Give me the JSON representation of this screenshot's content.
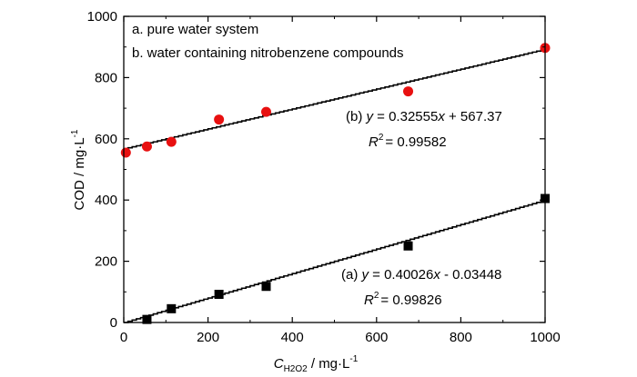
{
  "chart_data": {
    "type": "scatter",
    "xlabel": "C",
    "xlabel_sub": "H2O2",
    "xlabel_units": " / mg·L",
    "xlabel_exp": "-1",
    "ylabel": "COD / mg·L",
    "ylabel_exp": "-1",
    "xlim": [
      0,
      1000
    ],
    "ylim": [
      0,
      1000
    ],
    "xticks": [
      0,
      200,
      400,
      600,
      800,
      1000
    ],
    "yticks": [
      0,
      200,
      400,
      600,
      800,
      1000
    ],
    "legend": {
      "placement": "top-left",
      "entries": [
        "a. pure water system",
        "b. water containing nitrobenzene compounds"
      ]
    },
    "series": [
      {
        "name": "a. pure water system",
        "marker": "square",
        "color": "#000000",
        "x": [
          55,
          113,
          226,
          338,
          675,
          1000
        ],
        "y": [
          10,
          45,
          92,
          118,
          250,
          405
        ],
        "fit": {
          "slope": 0.40026,
          "intercept": -0.03448,
          "x_range": [
            0,
            1000
          ],
          "eq_prefix": "(a) ",
          "eq_y": "y",
          "eq_mid": " = 0.40026",
          "eq_x": "x",
          "eq_tail": " - 0.03448",
          "r2_label": "R",
          "r2_exp": "2",
          "r2_value": "= 0.99826"
        }
      },
      {
        "name": "b. water containing nitrobenzene compounds",
        "marker": "circle",
        "color": "#e81010",
        "x": [
          5,
          55,
          113,
          226,
          338,
          675,
          1000
        ],
        "y": [
          555,
          575,
          590,
          663,
          688,
          755,
          897
        ],
        "fit": {
          "slope": 0.32555,
          "intercept": 567.37,
          "x_range": [
            0,
            1000
          ],
          "eq_prefix": "(b) ",
          "eq_y": "y",
          "eq_mid": " = 0.32555",
          "eq_x": "x",
          "eq_tail": " + 567.37",
          "r2_label": "R",
          "r2_exp": "2",
          "r2_value": "= 0.99582"
        }
      }
    ]
  }
}
